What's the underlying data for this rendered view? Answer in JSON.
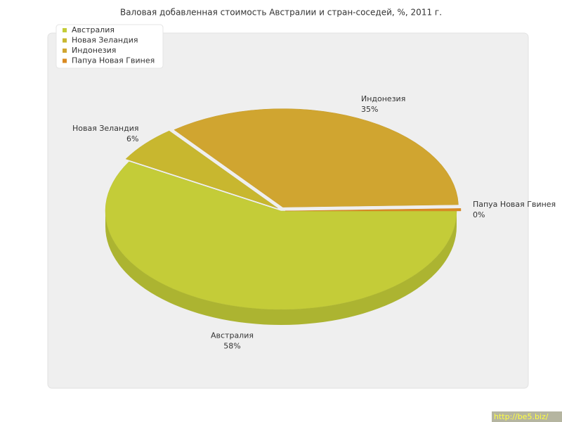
{
  "chart_data": {
    "type": "pie3d",
    "title": "Валовая добавленная стоимость Австралии и стран-соседей, %, 2011 г.",
    "categories": [
      "Австралия",
      "Новая Зеландия",
      "Индонезия",
      "Папуа Новая Гвинея"
    ],
    "values": [
      58,
      6,
      35,
      0.4
    ],
    "value_labels": [
      "58%",
      "6%",
      "35%",
      "0%"
    ],
    "colors": [
      "#c4cc38",
      "#c8b72f",
      "#d0a530",
      "#d98a22"
    ],
    "legend": "top-left",
    "watermark": "http://be5.biz/"
  }
}
